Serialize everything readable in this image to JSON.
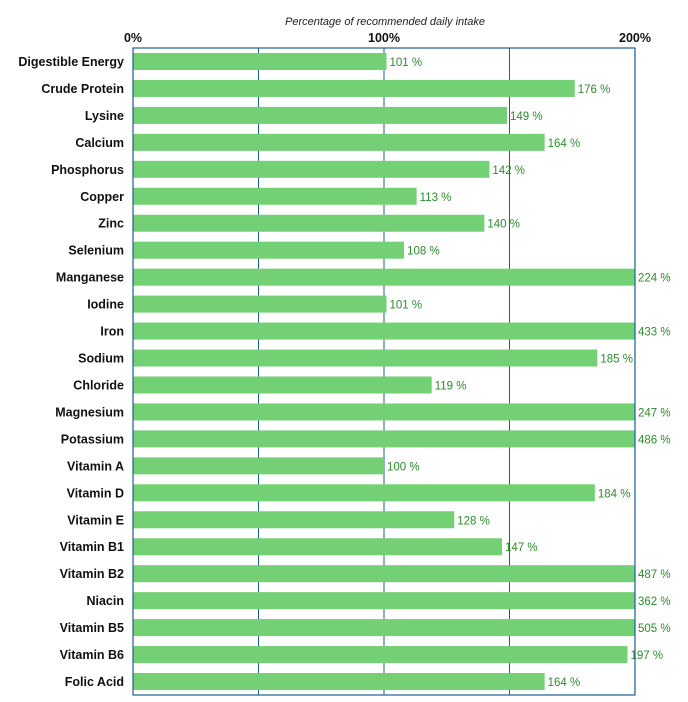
{
  "chart_data": {
    "type": "bar",
    "orientation": "horizontal",
    "title": "",
    "xlabel": "Percentage of recommended daily intake",
    "ylabel": "",
    "xlim": [
      0,
      200
    ],
    "xticks": [
      {
        "value": 0,
        "label": "0%"
      },
      {
        "value": 100,
        "label": "100%"
      },
      {
        "value": 200,
        "label": "200%"
      }
    ],
    "grid": true,
    "grid_values": [
      50,
      100,
      150
    ],
    "x_axis_position": "top",
    "bar_color": "#74d074",
    "label_color": "#2e8b2e",
    "categories": [
      "Digestible Energy",
      "Crude Protein",
      "Lysine",
      "Calcium",
      "Phosphorus",
      "Copper",
      "Zinc",
      "Selenium",
      "Manganese",
      "Iodine",
      "Iron",
      "Sodium",
      "Chloride",
      "Magnesium",
      "Potassium",
      "Vitamin A",
      "Vitamin D",
      "Vitamin E",
      "Vitamin B1",
      "Vitamin B2",
      "Niacin",
      "Vitamin B5",
      "Vitamin B6",
      "Folic Acid"
    ],
    "values": [
      101,
      176,
      149,
      164,
      142,
      113,
      140,
      108,
      224,
      101,
      433,
      185,
      119,
      247,
      486,
      100,
      184,
      128,
      147,
      487,
      362,
      505,
      197,
      164
    ],
    "value_labels": [
      "101 %",
      "176 %",
      "149 %",
      "164 %",
      "142 %",
      "113 %",
      "140 %",
      "108 %",
      "224 %",
      "101 %",
      "433 %",
      "185 %",
      "119 %",
      "247 %",
      "486 %",
      "100 %",
      "184 %",
      "128 %",
      "147 %",
      "487 %",
      "362 %",
      "505 %",
      "197 %",
      "164 %"
    ]
  }
}
